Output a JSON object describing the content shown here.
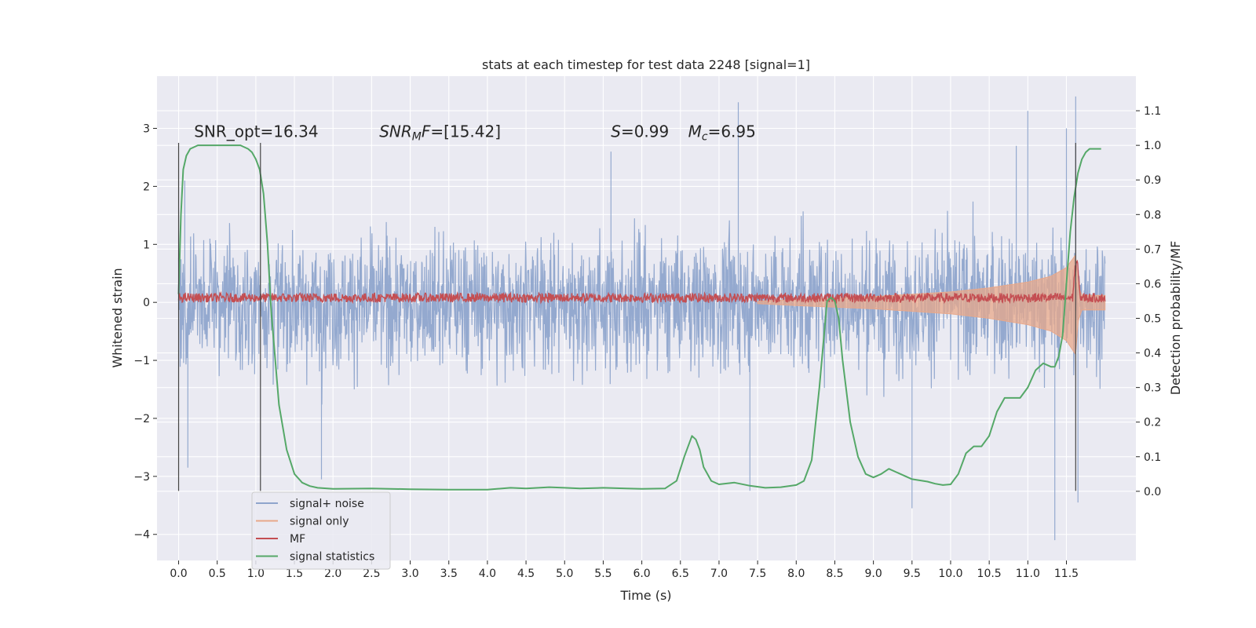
{
  "chart_data": {
    "type": "line",
    "title": "stats at each timestep for test data 2248 [signal=1]",
    "xlabel": "Time (s)",
    "ylabel": "Whitened strain",
    "y2label": "Detection probability/MF",
    "xlim": [
      -0.28,
      12.4
    ],
    "ylim": [
      -4.45,
      3.9
    ],
    "y2lim": [
      -0.2,
      1.2
    ],
    "xticks": [
      0.0,
      0.5,
      1.0,
      1.5,
      2.0,
      2.5,
      3.0,
      3.5,
      4.0,
      4.5,
      5.0,
      5.5,
      6.0,
      6.5,
      7.0,
      7.5,
      8.0,
      8.5,
      9.0,
      9.5,
      10.0,
      10.5,
      11.0,
      11.5
    ],
    "xtick_labels": [
      "0.0",
      "0.5",
      "1.0",
      "1.5",
      "2.0",
      "2.5",
      "3.0",
      "3.5",
      "4.0",
      "4.5",
      "5.0",
      "5.5",
      "6.0",
      "6.5",
      "7.0",
      "7.5",
      "8.0",
      "8.5",
      "9.0",
      "9.5",
      "10.0",
      "10.5",
      "11.0",
      "11.5"
    ],
    "yticks": [
      3,
      2,
      1,
      0,
      -1,
      -2,
      -3,
      -4
    ],
    "ytick_labels": [
      "3",
      "2",
      "1",
      "0",
      "−1",
      "−2",
      "−3",
      "−4"
    ],
    "y2ticks": [
      1.1,
      1.0,
      0.9,
      0.8,
      0.7,
      0.6,
      0.5,
      0.4,
      0.3,
      0.2,
      0.1,
      0.0
    ],
    "y2tick_labels": [
      "1.1",
      "1.0",
      "0.9",
      "0.8",
      "0.7",
      "0.6",
      "0.5",
      "0.4",
      "0.3",
      "0.2",
      "0.1",
      "0.0"
    ],
    "grid": true,
    "legend": {
      "placement": "lower-left",
      "entries": [
        {
          "label": "signal+ noise",
          "color": "#8fa5cc"
        },
        {
          "label": "signal only",
          "color": "#e8a88a"
        },
        {
          "label": "MF",
          "color": "#c44e52"
        },
        {
          "label": "signal statistics",
          "color": "#55a868"
        }
      ]
    },
    "annotations": {
      "snr_opt": {
        "label": "SNR_opt=",
        "value": "16.34",
        "x": 0.2
      },
      "snr_mf": {
        "label": "SNR",
        "sub": "M",
        "suffix": "F=",
        "value": "[15.42]",
        "x": 2.6
      },
      "s": {
        "label": "S",
        "suffix": "=0.99",
        "x": 5.6
      },
      "mc": {
        "label": "M",
        "sub": "c",
        "suffix": "=6.95",
        "x": 6.6
      },
      "y": 2.85
    },
    "vertical_markers": [
      {
        "x": 0.0,
        "y_top": 2.75,
        "y_bottom": -3.25
      },
      {
        "x": 1.06,
        "y_top": 2.75,
        "y_bottom": -3.25
      },
      {
        "x": 11.62,
        "y_top": 2.75,
        "y_bottom": -3.25
      }
    ],
    "series": [
      {
        "name": "signal+ noise",
        "color": "#8fa5cc",
        "x_range": [
          0.0,
          12.0
        ],
        "typical_amplitude": 1.3,
        "max": 3.55,
        "min": -4.1,
        "spikes": [
          [
            0.08,
            2.1
          ],
          [
            0.12,
            -2.85
          ],
          [
            1.85,
            -3.05
          ],
          [
            5.6,
            2.6
          ],
          [
            7.25,
            3.45
          ],
          [
            7.4,
            -3.25
          ],
          [
            9.5,
            -3.55
          ],
          [
            10.85,
            2.7
          ],
          [
            11.0,
            3.3
          ],
          [
            11.35,
            -4.1
          ],
          [
            11.5,
            3.0
          ],
          [
            11.62,
            3.55
          ],
          [
            11.65,
            -3.45
          ]
        ]
      },
      {
        "name": "signal only",
        "color": "#e8a88a",
        "envelope": [
          [
            7.5,
            0.02
          ],
          [
            8.0,
            0.05
          ],
          [
            9.0,
            0.1
          ],
          [
            10.0,
            0.18
          ],
          [
            10.5,
            0.25
          ],
          [
            11.0,
            0.35
          ],
          [
            11.3,
            0.45
          ],
          [
            11.5,
            0.6
          ],
          [
            11.62,
            0.82
          ],
          [
            11.65,
            0.3
          ],
          [
            11.7,
            0.12
          ],
          [
            12.0,
            0.12
          ]
        ]
      },
      {
        "name": "MF",
        "color": "#c44e52",
        "center": 0.08,
        "amplitude": 0.08,
        "peak": [
          11.63,
          1.0
        ]
      },
      {
        "name": "signal statistics",
        "color": "#55a868",
        "x": [
          0.0,
          0.03,
          0.06,
          0.1,
          0.15,
          0.25,
          0.4,
          0.6,
          0.8,
          0.9,
          0.95,
          1.0,
          1.05,
          1.1,
          1.15,
          1.2,
          1.3,
          1.4,
          1.5,
          1.6,
          1.7,
          1.8,
          2.0,
          2.5,
          3.0,
          3.5,
          4.0,
          4.3,
          4.5,
          4.8,
          5.0,
          5.2,
          5.5,
          5.8,
          6.0,
          6.3,
          6.45,
          6.55,
          6.65,
          6.7,
          6.75,
          6.8,
          6.9,
          7.0,
          7.2,
          7.4,
          7.6,
          7.8,
          8.0,
          8.1,
          8.2,
          8.3,
          8.4,
          8.45,
          8.5,
          8.55,
          8.6,
          8.7,
          8.8,
          8.9,
          9.0,
          9.1,
          9.2,
          9.3,
          9.5,
          9.7,
          9.8,
          9.9,
          10.0,
          10.1,
          10.2,
          10.3,
          10.4,
          10.5,
          10.6,
          10.7,
          10.8,
          10.9,
          11.0,
          11.1,
          11.2,
          11.3,
          11.35,
          11.4,
          11.45,
          11.5,
          11.55,
          11.6,
          11.65,
          11.7,
          11.75,
          11.8,
          11.9,
          11.95
        ],
        "y": [
          0.57,
          0.8,
          0.93,
          0.97,
          0.99,
          1.0,
          1.0,
          1.0,
          1.0,
          0.99,
          0.98,
          0.96,
          0.93,
          0.86,
          0.72,
          0.52,
          0.25,
          0.12,
          0.05,
          0.025,
          0.015,
          0.01,
          0.007,
          0.008,
          0.006,
          0.005,
          0.005,
          0.01,
          0.008,
          0.012,
          0.01,
          0.008,
          0.01,
          0.008,
          0.007,
          0.008,
          0.03,
          0.1,
          0.16,
          0.15,
          0.12,
          0.07,
          0.03,
          0.02,
          0.025,
          0.016,
          0.01,
          0.012,
          0.018,
          0.03,
          0.09,
          0.3,
          0.55,
          0.56,
          0.55,
          0.5,
          0.38,
          0.2,
          0.1,
          0.05,
          0.04,
          0.05,
          0.065,
          0.055,
          0.035,
          0.028,
          0.022,
          0.018,
          0.02,
          0.05,
          0.11,
          0.13,
          0.13,
          0.16,
          0.23,
          0.27,
          0.27,
          0.27,
          0.3,
          0.35,
          0.37,
          0.36,
          0.36,
          0.39,
          0.45,
          0.6,
          0.75,
          0.85,
          0.92,
          0.96,
          0.98,
          0.99,
          0.99,
          0.99
        ]
      }
    ]
  }
}
